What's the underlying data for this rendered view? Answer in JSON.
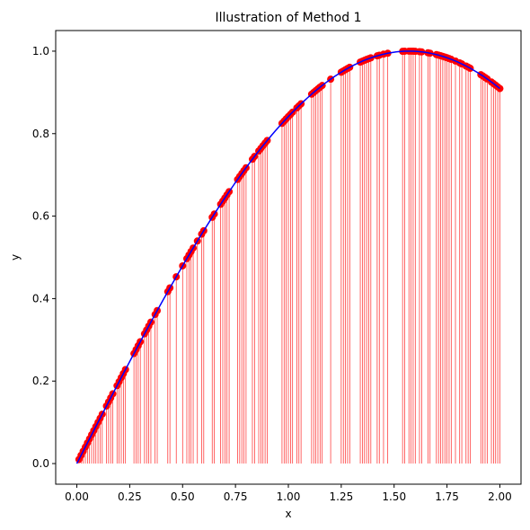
{
  "chart_data": {
    "type": "scatter",
    "title": "Illustration of Method 1",
    "xlabel": "x",
    "ylabel": "y",
    "xlim": [
      -0.1,
      2.1
    ],
    "ylim": [
      -0.05,
      1.05
    ],
    "xticks": [
      0.0,
      0.25,
      0.5,
      0.75,
      1.0,
      1.25,
      1.5,
      1.75,
      2.0
    ],
    "xtick_labels": [
      "0.00",
      "0.25",
      "0.50",
      "0.75",
      "1.00",
      "1.25",
      "1.50",
      "1.75",
      "2.00"
    ],
    "yticks": [
      0.0,
      0.2,
      0.4,
      0.6,
      0.8,
      1.0
    ],
    "ytick_labels": [
      "0.0",
      "0.2",
      "0.4",
      "0.6",
      "0.8",
      "1.0"
    ],
    "grid": false,
    "curve": {
      "function": "sin(x)",
      "x_range": [
        0.0,
        2.0
      ],
      "color": "#0000ff"
    },
    "points": {
      "color": "#ff0000",
      "drop_lines": true,
      "x": [
        0.01,
        0.02,
        0.03,
        0.04,
        0.05,
        0.06,
        0.07,
        0.08,
        0.09,
        0.1,
        0.11,
        0.12,
        0.14,
        0.15,
        0.16,
        0.17,
        0.19,
        0.2,
        0.21,
        0.22,
        0.23,
        0.27,
        0.28,
        0.29,
        0.3,
        0.32,
        0.33,
        0.34,
        0.35,
        0.37,
        0.38,
        0.43,
        0.44,
        0.47,
        0.5,
        0.52,
        0.53,
        0.54,
        0.55,
        0.57,
        0.59,
        0.6,
        0.64,
        0.65,
        0.68,
        0.69,
        0.7,
        0.71,
        0.72,
        0.76,
        0.77,
        0.78,
        0.79,
        0.8,
        0.83,
        0.84,
        0.86,
        0.87,
        0.88,
        0.89,
        0.9,
        0.97,
        0.98,
        0.99,
        1.0,
        1.01,
        1.02,
        1.04,
        1.05,
        1.06,
        1.11,
        1.12,
        1.13,
        1.14,
        1.15,
        1.16,
        1.2,
        1.25,
        1.26,
        1.27,
        1.28,
        1.29,
        1.34,
        1.35,
        1.36,
        1.37,
        1.38,
        1.39,
        1.42,
        1.43,
        1.45,
        1.47,
        1.54,
        1.55,
        1.57,
        1.58,
        1.59,
        1.6,
        1.62,
        1.63,
        1.66,
        1.67,
        1.7,
        1.71,
        1.72,
        1.73,
        1.74,
        1.75,
        1.76,
        1.77,
        1.79,
        1.81,
        1.82,
        1.84,
        1.85,
        1.86,
        1.91,
        1.92,
        1.93,
        1.94,
        1.96,
        1.97,
        1.98,
        1.99,
        2.0
      ]
    }
  }
}
